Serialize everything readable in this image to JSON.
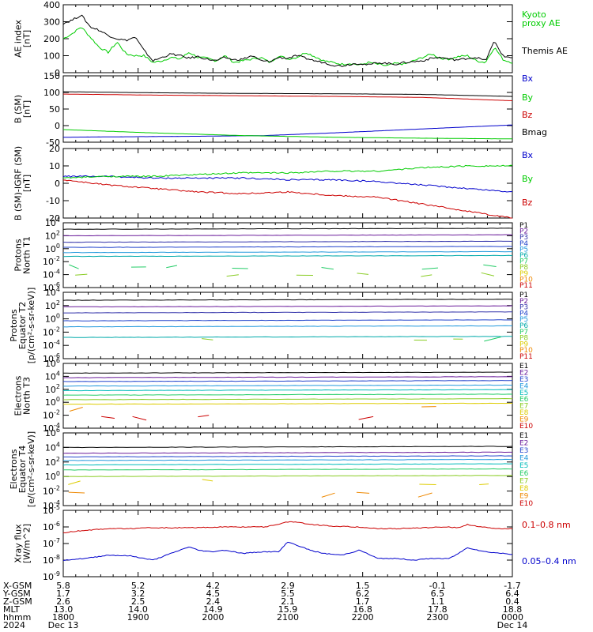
{
  "chart_data": [
    {
      "type": "line",
      "ylabel": "AE index\n[nT]",
      "ylim": [
        0,
        400
      ],
      "yticks": [
        "400",
        "300",
        "200",
        "100",
        "0"
      ],
      "yvals": [
        400,
        300,
        200,
        100,
        0
      ],
      "series": [
        {
          "name": "Kyoto\nproxy AE",
          "color": "#00cc00",
          "x": [
            0,
            0.02,
            0.04,
            0.06,
            0.08,
            0.1,
            0.12,
            0.14,
            0.16,
            0.18,
            0.2,
            0.22,
            0.24,
            0.26,
            0.28,
            0.3,
            0.32,
            0.34,
            0.36,
            0.38,
            0.4,
            0.42,
            0.44,
            0.46,
            0.48,
            0.5,
            0.52,
            0.54,
            0.56,
            0.58,
            0.6,
            0.62,
            0.64,
            0.66,
            0.68,
            0.7,
            0.72,
            0.74,
            0.76,
            0.78,
            0.8,
            0.82,
            0.84,
            0.86,
            0.88,
            0.9,
            0.92,
            0.94,
            0.96,
            0.98,
            1.0
          ],
          "values": [
            200,
            230,
            270,
            210,
            150,
            120,
            180,
            110,
            100,
            100,
            60,
            70,
            90,
            80,
            120,
            90,
            85,
            70,
            100,
            60,
            70,
            80,
            90,
            60,
            100,
            80,
            90,
            120,
            95,
            70,
            60,
            50,
            55,
            45,
            60,
            50,
            40,
            55,
            50,
            70,
            90,
            110,
            85,
            80,
            95,
            100,
            70,
            60,
            150,
            75,
            60
          ]
        },
        {
          "name": "Themis AE",
          "color": "#000000",
          "x": [
            0,
            0.02,
            0.04,
            0.06,
            0.08,
            0.1,
            0.12,
            0.14,
            0.16,
            0.18,
            0.2,
            0.22,
            0.24,
            0.26,
            0.28,
            0.3,
            0.32,
            0.34,
            0.36,
            0.38,
            0.4,
            0.42,
            0.44,
            0.46,
            0.48,
            0.5,
            0.52,
            0.54,
            0.56,
            0.58,
            0.6,
            0.62,
            0.64,
            0.66,
            0.68,
            0.7,
            0.72,
            0.74,
            0.76,
            0.78,
            0.8,
            0.82,
            0.84,
            0.86,
            0.88,
            0.9,
            0.92,
            0.94,
            0.96,
            0.98,
            1.0
          ],
          "values": [
            290,
            310,
            340,
            270,
            250,
            220,
            200,
            190,
            210,
            130,
            70,
            90,
            110,
            100,
            85,
            95,
            80,
            70,
            90,
            75,
            80,
            100,
            70,
            65,
            90,
            85,
            100,
            85,
            70,
            60,
            45,
            40,
            50,
            55,
            45,
            60,
            55,
            50,
            60,
            65,
            70,
            85,
            90,
            80,
            75,
            85,
            90,
            70,
            185,
            95,
            90
          ]
        }
      ]
    },
    {
      "type": "line",
      "ylabel": "B (SM)\n[nT]",
      "ylim": [
        -50,
        150
      ],
      "yticks": [
        "150",
        "100",
        "50",
        "0",
        "-50"
      ],
      "yvals": [
        150,
        100,
        50,
        0,
        -50
      ],
      "series": [
        {
          "name": "Bx",
          "color": "#0000cc",
          "x": [
            0,
            0.3,
            0.45,
            0.6,
            0.8,
            1.0
          ],
          "values": [
            -35,
            -32,
            -30,
            -22,
            -10,
            2
          ]
        },
        {
          "name": "By",
          "color": "#00cc00",
          "x": [
            0,
            0.2,
            0.4,
            0.6,
            0.8,
            1.0
          ],
          "values": [
            -12,
            -22,
            -30,
            -35,
            -38,
            -40
          ]
        },
        {
          "name": "Bz",
          "color": "#cc0000",
          "x": [
            0,
            0.2,
            0.4,
            0.6,
            0.8,
            1.0
          ],
          "values": [
            95,
            92,
            90,
            88,
            85,
            75
          ]
        },
        {
          "name": "Bmag",
          "color": "#000000",
          "x": [
            0,
            0.2,
            0.4,
            0.6,
            0.8,
            1.0
          ],
          "values": [
            102,
            99,
            97,
            96,
            94,
            88
          ]
        }
      ]
    },
    {
      "type": "line",
      "ylabel": "B (SM)-IGRF (SM)\n[nT]",
      "ylim": [
        -20,
        20
      ],
      "yticks": [
        "20",
        "10",
        "0",
        "-10",
        "-20"
      ],
      "yvals": [
        20,
        10,
        0,
        -10,
        -20
      ],
      "series": [
        {
          "name": "Bx",
          "color": "#0000cc",
          "x": [
            0,
            0.1,
            0.2,
            0.3,
            0.4,
            0.5,
            0.6,
            0.7,
            0.8,
            0.9,
            1.0
          ],
          "values": [
            4,
            4,
            3,
            3,
            3,
            2,
            2,
            1,
            -1,
            -3,
            -5
          ]
        },
        {
          "name": "By",
          "color": "#00cc00",
          "x": [
            0,
            0.1,
            0.2,
            0.3,
            0.4,
            0.5,
            0.6,
            0.7,
            0.8,
            0.9,
            1.0
          ],
          "values": [
            3,
            4,
            4,
            5,
            6,
            6,
            7,
            7,
            9,
            10,
            10
          ]
        },
        {
          "name": "Bz",
          "color": "#cc0000",
          "x": [
            0,
            0.1,
            0.2,
            0.3,
            0.4,
            0.5,
            0.6,
            0.7,
            0.8,
            0.9,
            1.0
          ],
          "values": [
            2,
            -1,
            -3,
            -5,
            -6,
            -5,
            -7,
            -8,
            -12,
            -16,
            -20
          ]
        }
      ]
    },
    {
      "type": "line",
      "ylabel": "Protons\nNorth T1",
      "log": true,
      "ylim": [
        -6,
        4
      ],
      "yticks": [
        "10^4",
        "10^2",
        "10^0",
        "10^-2",
        "10^-4",
        "10^-6"
      ],
      "yvals": [
        4,
        2,
        0,
        -2,
        -4,
        -6
      ],
      "legend": [
        "P1",
        "P2",
        "P3",
        "P4",
        "P5",
        "P6",
        "P7",
        "P8",
        "P9",
        "P10",
        "P11"
      ],
      "colors": [
        "#000000",
        "#6a1b9a",
        "#3333aa",
        "#2244cc",
        "#2299dd",
        "#00aaaa",
        "#22cc66",
        "#88cc22",
        "#ddcc00",
        "#ee8800",
        "#cc0000"
      ],
      "levels": [
        3.0,
        2.0,
        1.0,
        0.2,
        -0.6,
        -1.2,
        -2.8,
        -4.0
      ]
    },
    {
      "type": "line",
      "ylabel": "Protons\nEquator T2\n[p/(cm²-s-sr-keV)]",
      "log": true,
      "ylim": [
        -6,
        4
      ],
      "yticks": [
        "10^4",
        "10^2",
        "10^0",
        "10^-2",
        "10^-4",
        "10^-6"
      ],
      "yvals": [
        4,
        2,
        0,
        -2,
        -4,
        -6
      ],
      "legend": [
        "P1",
        "P2",
        "P3",
        "P4",
        "P5",
        "P6",
        "P7",
        "P8",
        "P9",
        "P10",
        "P11"
      ],
      "colors": [
        "#000000",
        "#6a1b9a",
        "#3333aa",
        "#2244cc",
        "#2299dd",
        "#00aaaa",
        "#22cc66",
        "#88cc22",
        "#ddcc00",
        "#ee8800",
        "#cc0000"
      ],
      "levels": [
        2.8,
        1.8,
        0.9,
        -0.3,
        -1.2,
        -2.8,
        -3.0,
        -3.3
      ]
    },
    {
      "type": "line",
      "ylabel": "Electrons\nNorth T3",
      "log": true,
      "ylim": [
        -4,
        6
      ],
      "yticks": [
        "10^6",
        "10^4",
        "10^2",
        "10^0",
        "10^-2",
        "10^-4"
      ],
      "yvals": [
        6,
        4,
        2,
        0,
        -2,
        -4
      ],
      "legend": [
        "E1",
        "E2",
        "E3",
        "E4",
        "E5",
        "E6",
        "E7",
        "E8",
        "E9",
        "E10"
      ],
      "colors": [
        "#000000",
        "#6a1b9a",
        "#2244cc",
        "#2299dd",
        "#00bbbb",
        "#22cc66",
        "#88cc22",
        "#ddcc00",
        "#ee8800",
        "#cc0000"
      ],
      "levels": [
        4.5,
        3.8,
        3.2,
        2.5,
        1.8,
        1.1,
        0.4,
        -0.3,
        -1.0,
        -2.4
      ]
    },
    {
      "type": "line",
      "ylabel": "Electrons\nEquator T4\n[e/(cm²-s-sr-keV)]",
      "log": true,
      "ylim": [
        -4,
        6
      ],
      "yticks": [
        "10^6",
        "10^4",
        "10^2",
        "10^0",
        "10^-2",
        "10^-4"
      ],
      "yvals": [
        6,
        4,
        2,
        0,
        -2,
        -4
      ],
      "legend": [
        "E1",
        "E2",
        "E3",
        "E4",
        "E5",
        "E6",
        "E7",
        "E8",
        "E9",
        "E10"
      ],
      "colors": [
        "#000000",
        "#6a1b9a",
        "#2244cc",
        "#2299dd",
        "#00bbbb",
        "#22cc66",
        "#88cc22",
        "#ddcc00",
        "#ee8800",
        "#cc0000"
      ],
      "levels": [
        4.0,
        3.2,
        2.7,
        2.2,
        1.6,
        0.9,
        0.0,
        -0.8,
        -2.5
      ]
    },
    {
      "type": "line",
      "ylabel": "Xray flux\n[W/m^2]",
      "log": true,
      "ylim": [
        -9,
        -5
      ],
      "yticks": [
        "10^-5",
        "10^-6",
        "10^-7",
        "10^-8",
        "10^-9"
      ],
      "yvals": [
        -5,
        -6,
        -7,
        -8,
        -9
      ],
      "series": [
        {
          "name": "0.1–0.8 nm",
          "color": "#cc0000",
          "x": [
            0,
            0.05,
            0.1,
            0.15,
            0.2,
            0.25,
            0.3,
            0.35,
            0.4,
            0.45,
            0.5,
            0.52,
            0.55,
            0.6,
            0.65,
            0.7,
            0.75,
            0.8,
            0.85,
            0.88,
            0.9,
            0.93,
            0.96,
            1.0
          ],
          "values": [
            -6.35,
            -6.2,
            -6.1,
            -6.1,
            -6.05,
            -6.05,
            -6.05,
            -6.0,
            -6.0,
            -6.0,
            -5.7,
            -5.7,
            -5.85,
            -5.95,
            -6.0,
            -6.1,
            -6.1,
            -6.05,
            -6.0,
            -6.05,
            -5.85,
            -6.0,
            -6.1,
            -6.1
          ]
        },
        {
          "name": "0.05–0.4 nm",
          "color": "#0000cc",
          "x": [
            0,
            0.05,
            0.1,
            0.15,
            0.2,
            0.25,
            0.28,
            0.3,
            0.33,
            0.36,
            0.4,
            0.44,
            0.48,
            0.5,
            0.52,
            0.55,
            0.58,
            0.62,
            0.66,
            0.7,
            0.74,
            0.78,
            0.82,
            0.86,
            0.88,
            0.9,
            0.94,
            1.0
          ],
          "values": [
            -8.0,
            -7.9,
            -7.7,
            -7.75,
            -8.0,
            -7.5,
            -7.2,
            -7.4,
            -7.5,
            -7.4,
            -7.6,
            -7.5,
            -7.5,
            -6.9,
            -7.1,
            -7.4,
            -7.6,
            -7.7,
            -7.4,
            -7.9,
            -7.9,
            -8.0,
            -7.9,
            -7.9,
            -7.6,
            -7.25,
            -7.5,
            -7.65
          ]
        }
      ]
    }
  ],
  "footer": {
    "row_labels": [
      "X-GSM",
      "Y-GSM",
      "Z-GSM",
      "MLT",
      "hhmm",
      "2024"
    ],
    "columns": [
      {
        "vals": [
          "5.8",
          "1.7",
          "2.6",
          "13.0",
          "1800",
          "Dec 13"
        ]
      },
      {
        "vals": [
          "5.2",
          "3.2",
          "2.5",
          "14.0",
          "1900",
          ""
        ]
      },
      {
        "vals": [
          "4.2",
          "4.5",
          "2.4",
          "14.9",
          "2000",
          ""
        ]
      },
      {
        "vals": [
          "2.9",
          "5.5",
          "2.1",
          "15.9",
          "2100",
          ""
        ]
      },
      {
        "vals": [
          "1.5",
          "6.2",
          "1.7",
          "16.8",
          "2200",
          ""
        ]
      },
      {
        "vals": [
          "-0.1",
          "6.5",
          "1.1",
          "17.8",
          "2300",
          ""
        ]
      },
      {
        "vals": [
          "-1.7",
          "6.4",
          "0.4",
          "18.8",
          "0000",
          "Dec 14"
        ]
      }
    ]
  }
}
